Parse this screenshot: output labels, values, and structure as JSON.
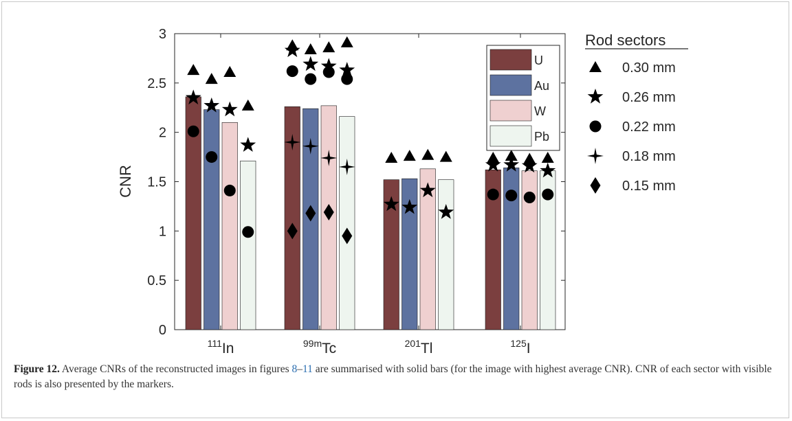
{
  "chart_data": {
    "type": "bar",
    "ylabel": "CNR",
    "ylim": [
      0,
      3
    ],
    "yticks": [
      "0",
      "0.5",
      "1",
      "1.5",
      "2",
      "2.5",
      "3"
    ],
    "grid": false,
    "categories": [
      {
        "sup": "111",
        "base": "In"
      },
      {
        "sup": "99m",
        "base": "Tc"
      },
      {
        "sup": "201",
        "base": "Tl"
      },
      {
        "sup": "125",
        "base": "I"
      }
    ],
    "series": [
      {
        "name": "U",
        "color": "#7b3f3f",
        "values": [
          2.36,
          2.26,
          1.52,
          1.62
        ]
      },
      {
        "name": "Au",
        "color": "#5d72a0",
        "values": [
          2.23,
          2.24,
          1.53,
          1.64
        ]
      },
      {
        "name": "W",
        "color": "#efd0d0",
        "values": [
          2.1,
          2.27,
          1.63,
          1.61
        ]
      },
      {
        "name": "Pb",
        "color": "#eef5ef",
        "values": [
          1.71,
          2.16,
          1.52,
          1.61
        ]
      }
    ],
    "legend_placement": "top-right (inside)",
    "marker_legend_title": "Rod sectors",
    "marker_series": [
      {
        "name": "0.30 mm",
        "marker": "triangle",
        "values": [
          [
            2.63,
            2.54,
            2.61,
            2.27
          ],
          [
            2.88,
            2.84,
            2.86,
            2.91
          ],
          [
            1.74,
            1.76,
            1.77,
            1.75
          ],
          [
            1.74,
            1.76,
            1.73,
            1.74
          ]
        ]
      },
      {
        "name": "0.26 mm",
        "marker": "star",
        "values": [
          [
            2.35,
            2.27,
            2.23,
            1.87
          ],
          [
            2.83,
            2.69,
            2.67,
            2.63
          ],
          [
            1.27,
            1.24,
            1.41,
            1.19
          ],
          [
            1.67,
            1.67,
            1.66,
            1.61
          ]
        ]
      },
      {
        "name": "0.22 mm",
        "marker": "circle",
        "values": [
          [
            2.01,
            1.75,
            1.41,
            0.99
          ],
          [
            2.62,
            2.54,
            2.61,
            2.54
          ],
          [
            null,
            null,
            null,
            null
          ],
          [
            1.37,
            1.36,
            1.34,
            1.37
          ]
        ]
      },
      {
        "name": "0.18 mm",
        "marker": "four-point-star",
        "values": [
          [
            null,
            null,
            null,
            null
          ],
          [
            1.9,
            1.86,
            1.74,
            1.65
          ],
          [
            null,
            null,
            null,
            null
          ],
          [
            null,
            null,
            null,
            null
          ]
        ]
      },
      {
        "name": "0.15 mm",
        "marker": "diamond",
        "values": [
          [
            null,
            null,
            null,
            null
          ],
          [
            1.0,
            1.18,
            1.19,
            0.95
          ],
          [
            null,
            null,
            null,
            null
          ],
          [
            null,
            null,
            null,
            null
          ]
        ]
      }
    ]
  },
  "caption": {
    "label": "Figure 12.",
    "text_a": " Average CNRs of the reconstructed images in figures ",
    "ref_a": "8",
    "dash": "–",
    "ref_b": "11",
    "text_b": " are summarised with solid bars (for the image with highest average CNR). CNR of each sector with visible rods is also presented by the markers."
  }
}
